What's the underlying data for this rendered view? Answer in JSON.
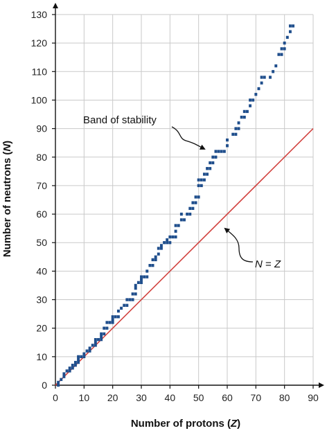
{
  "chart_data": {
    "type": "line",
    "title": "",
    "xlabel": "Number of protons",
    "xlabel_var": "Z",
    "ylabel": "Number of neutrons",
    "ylabel_var": "N",
    "xlim": [
      0,
      90
    ],
    "ylim": [
      0,
      130
    ],
    "xticks": [
      0,
      10,
      20,
      30,
      40,
      50,
      60,
      70,
      80,
      90
    ],
    "yticks": [
      0,
      10,
      20,
      30,
      40,
      50,
      60,
      70,
      80,
      90,
      100,
      110,
      120,
      130
    ],
    "grid": true,
    "colors": {
      "band": "#1f4e8c",
      "line": "#d2423f",
      "grid": "#c9c9c9"
    },
    "series": [
      {
        "name": "N = Z",
        "kind": "line",
        "x": [
          0,
          90
        ],
        "y": [
          0,
          90
        ]
      },
      {
        "name": "Band of stability",
        "kind": "band",
        "points": [
          [
            1,
            0
          ],
          [
            1,
            1
          ],
          [
            2,
            2
          ],
          [
            3,
            3
          ],
          [
            3,
            4
          ],
          [
            4,
            5
          ],
          [
            5,
            5
          ],
          [
            5,
            6
          ],
          [
            6,
            6
          ],
          [
            6,
            7
          ],
          [
            7,
            7
          ],
          [
            7,
            8
          ],
          [
            8,
            8
          ],
          [
            8,
            9
          ],
          [
            8,
            10
          ],
          [
            9,
            10
          ],
          [
            10,
            10
          ],
          [
            10,
            11
          ],
          [
            11,
            12
          ],
          [
            12,
            12
          ],
          [
            12,
            13
          ],
          [
            13,
            14
          ],
          [
            14,
            14
          ],
          [
            14,
            15
          ],
          [
            14,
            16
          ],
          [
            15,
            16
          ],
          [
            16,
            16
          ],
          [
            16,
            17
          ],
          [
            16,
            18
          ],
          [
            17,
            18
          ],
          [
            17,
            20
          ],
          [
            18,
            20
          ],
          [
            18,
            22
          ],
          [
            19,
            22
          ],
          [
            20,
            22
          ],
          [
            20,
            23
          ],
          [
            20,
            24
          ],
          [
            21,
            24
          ],
          [
            22,
            24
          ],
          [
            22,
            26
          ],
          [
            23,
            27
          ],
          [
            24,
            28
          ],
          [
            25,
            28
          ],
          [
            25,
            30
          ],
          [
            26,
            30
          ],
          [
            27,
            30
          ],
          [
            27,
            32
          ],
          [
            28,
            32
          ],
          [
            28,
            34
          ],
          [
            28,
            35
          ],
          [
            29,
            36
          ],
          [
            30,
            36
          ],
          [
            30,
            37
          ],
          [
            30,
            38
          ],
          [
            31,
            38
          ],
          [
            32,
            38
          ],
          [
            32,
            40
          ],
          [
            33,
            42
          ],
          [
            34,
            42
          ],
          [
            34,
            44
          ],
          [
            35,
            44
          ],
          [
            35,
            45
          ],
          [
            36,
            46
          ],
          [
            36,
            48
          ],
          [
            37,
            48
          ],
          [
            37,
            49
          ],
          [
            38,
            50
          ],
          [
            39,
            50
          ],
          [
            39,
            51
          ],
          [
            40,
            50
          ],
          [
            40,
            52
          ],
          [
            41,
            52
          ],
          [
            42,
            52
          ],
          [
            42,
            54
          ],
          [
            42,
            56
          ],
          [
            43,
            56
          ],
          [
            44,
            58
          ],
          [
            44,
            60
          ],
          [
            45,
            58
          ],
          [
            46,
            60
          ],
          [
            47,
            60
          ],
          [
            47,
            62
          ],
          [
            48,
            62
          ],
          [
            48,
            64
          ],
          [
            49,
            64
          ],
          [
            49,
            66
          ],
          [
            50,
            66
          ],
          [
            50,
            70
          ],
          [
            50,
            72
          ],
          [
            51,
            70
          ],
          [
            51,
            72
          ],
          [
            52,
            72
          ],
          [
            52,
            74
          ],
          [
            53,
            74
          ],
          [
            53,
            76
          ],
          [
            54,
            76
          ],
          [
            54,
            78
          ],
          [
            55,
            78
          ],
          [
            55,
            80
          ],
          [
            56,
            80
          ],
          [
            56,
            82
          ],
          [
            57,
            82
          ],
          [
            58,
            82
          ],
          [
            59,
            82
          ],
          [
            60,
            84
          ],
          [
            60,
            86
          ],
          [
            62,
            88
          ],
          [
            63,
            88
          ],
          [
            63,
            90
          ],
          [
            64,
            90
          ],
          [
            64,
            92
          ],
          [
            65,
            94
          ],
          [
            66,
            94
          ],
          [
            66,
            96
          ],
          [
            67,
            96
          ],
          [
            68,
            98
          ],
          [
            68,
            100
          ],
          [
            69,
            100
          ],
          [
            70,
            102
          ],
          [
            71,
            104
          ],
          [
            72,
            106
          ],
          [
            72,
            108
          ],
          [
            73,
            108
          ],
          [
            75,
            108
          ],
          [
            76,
            110
          ],
          [
            77,
            112
          ],
          [
            78,
            116
          ],
          [
            79,
            116
          ],
          [
            79,
            118
          ],
          [
            80,
            118
          ],
          [
            80,
            120
          ],
          [
            81,
            122
          ],
          [
            82,
            124
          ],
          [
            82,
            126
          ],
          [
            83,
            126
          ]
        ]
      }
    ],
    "annotations": [
      {
        "name": "band-label",
        "text": "Band of stability",
        "points_to": "Band of stability",
        "target": [
          55,
          82
        ]
      },
      {
        "name": "nz-label",
        "text": "N = Z",
        "points_to": "N = Z",
        "target": [
          60,
          60
        ]
      }
    ]
  }
}
